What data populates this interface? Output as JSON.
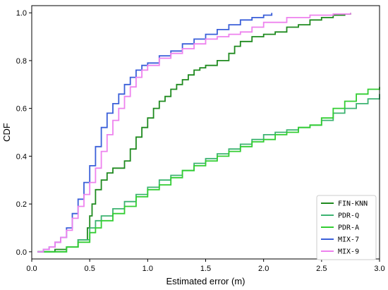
{
  "chart_data": {
    "type": "line",
    "xlabel": "Estimated error (m)",
    "ylabel": "CDF",
    "xlim": [
      0.0,
      3.0
    ],
    "ylim": [
      -0.03,
      1.03
    ],
    "xticks": [
      "0.0",
      "0.5",
      "1.0",
      "1.5",
      "2.0",
      "2.5",
      "3.0"
    ],
    "yticks": [
      "0.0",
      "0.2",
      "0.4",
      "0.6",
      "0.8",
      "1.0"
    ],
    "grid": false,
    "legend_position": "bottom-right",
    "series": [
      {
        "name": "FIN-KNN",
        "color": "#1f8a1f",
        "x": [
          0.05,
          0.2,
          0.3,
          0.4,
          0.48,
          0.5,
          0.52,
          0.55,
          0.6,
          0.65,
          0.7,
          0.8,
          0.85,
          0.9,
          0.95,
          1.0,
          1.05,
          1.1,
          1.15,
          1.2,
          1.25,
          1.3,
          1.35,
          1.4,
          1.45,
          1.5,
          1.6,
          1.7,
          1.75,
          1.8,
          1.9,
          2.0,
          2.1,
          2.2,
          2.3,
          2.4,
          2.5,
          2.6,
          2.7,
          2.75
        ],
        "y": [
          0.0,
          0.01,
          0.02,
          0.05,
          0.1,
          0.15,
          0.2,
          0.26,
          0.3,
          0.33,
          0.35,
          0.38,
          0.43,
          0.48,
          0.52,
          0.56,
          0.6,
          0.63,
          0.65,
          0.68,
          0.7,
          0.72,
          0.74,
          0.76,
          0.77,
          0.78,
          0.8,
          0.83,
          0.86,
          0.88,
          0.9,
          0.91,
          0.92,
          0.94,
          0.95,
          0.97,
          0.98,
          0.99,
          0.995,
          1.0
        ]
      },
      {
        "name": "PDR-Q",
        "color": "#3cb371",
        "x": [
          0.05,
          0.3,
          0.4,
          0.5,
          0.55,
          0.6,
          0.7,
          0.8,
          0.9,
          1.0,
          1.1,
          1.2,
          1.3,
          1.4,
          1.5,
          1.6,
          1.7,
          1.8,
          1.9,
          2.0,
          2.1,
          2.2,
          2.3,
          2.4,
          2.5,
          2.6,
          2.7,
          2.8,
          2.9,
          3.0
        ],
        "y": [
          0.0,
          0.02,
          0.05,
          0.1,
          0.13,
          0.15,
          0.18,
          0.21,
          0.24,
          0.27,
          0.3,
          0.32,
          0.34,
          0.37,
          0.39,
          0.41,
          0.43,
          0.45,
          0.47,
          0.49,
          0.5,
          0.51,
          0.52,
          0.53,
          0.55,
          0.58,
          0.6,
          0.62,
          0.64,
          0.66
        ]
      },
      {
        "name": "PDR-A",
        "color": "#32cd32",
        "x": [
          0.05,
          0.3,
          0.4,
          0.5,
          0.55,
          0.6,
          0.7,
          0.8,
          0.9,
          1.0,
          1.1,
          1.2,
          1.3,
          1.4,
          1.5,
          1.6,
          1.7,
          1.8,
          1.9,
          2.0,
          2.1,
          2.2,
          2.3,
          2.4,
          2.5,
          2.6,
          2.7,
          2.8,
          2.9,
          3.0
        ],
        "y": [
          0.0,
          0.02,
          0.04,
          0.08,
          0.1,
          0.13,
          0.16,
          0.19,
          0.23,
          0.26,
          0.28,
          0.31,
          0.34,
          0.36,
          0.38,
          0.4,
          0.42,
          0.44,
          0.46,
          0.47,
          0.49,
          0.5,
          0.52,
          0.53,
          0.56,
          0.6,
          0.63,
          0.66,
          0.68,
          0.69
        ]
      },
      {
        "name": "MIX-7",
        "color": "#3a5fd9",
        "x": [
          0.05,
          0.1,
          0.15,
          0.2,
          0.25,
          0.3,
          0.35,
          0.4,
          0.45,
          0.5,
          0.55,
          0.6,
          0.65,
          0.7,
          0.75,
          0.8,
          0.85,
          0.9,
          0.95,
          1.0,
          1.1,
          1.2,
          1.3,
          1.4,
          1.5,
          1.6,
          1.7,
          1.8,
          1.9,
          2.0,
          2.07
        ],
        "y": [
          0.0,
          0.01,
          0.02,
          0.04,
          0.06,
          0.1,
          0.16,
          0.22,
          0.29,
          0.36,
          0.44,
          0.52,
          0.58,
          0.62,
          0.66,
          0.7,
          0.73,
          0.76,
          0.78,
          0.79,
          0.82,
          0.84,
          0.87,
          0.89,
          0.91,
          0.93,
          0.95,
          0.97,
          0.98,
          0.99,
          1.0
        ]
      },
      {
        "name": "MIX-9",
        "color": "#ee82ee",
        "x": [
          0.05,
          0.1,
          0.15,
          0.2,
          0.25,
          0.3,
          0.35,
          0.4,
          0.45,
          0.5,
          0.55,
          0.6,
          0.65,
          0.7,
          0.75,
          0.8,
          0.85,
          0.9,
          0.95,
          1.0,
          1.1,
          1.2,
          1.3,
          1.4,
          1.5,
          1.6,
          1.7,
          1.8,
          1.9,
          2.0,
          2.2,
          2.4,
          2.6,
          2.75
        ],
        "y": [
          0.0,
          0.01,
          0.02,
          0.04,
          0.06,
          0.09,
          0.14,
          0.19,
          0.24,
          0.29,
          0.35,
          0.42,
          0.49,
          0.55,
          0.6,
          0.65,
          0.69,
          0.73,
          0.76,
          0.78,
          0.81,
          0.83,
          0.85,
          0.87,
          0.89,
          0.9,
          0.91,
          0.92,
          0.94,
          0.96,
          0.98,
          0.99,
          0.995,
          1.0
        ]
      }
    ]
  }
}
